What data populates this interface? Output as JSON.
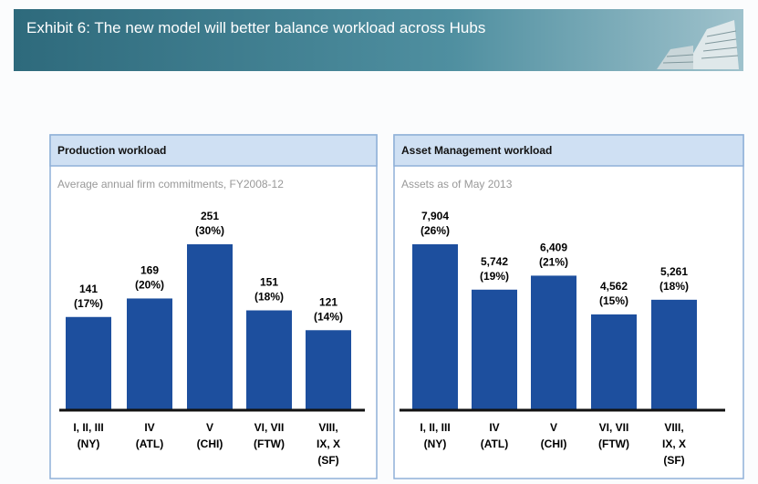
{
  "header": {
    "title": "Exhibit 6: The new model will better balance workload across Hubs"
  },
  "chart_data": [
    {
      "type": "bar",
      "title": "Production workload",
      "subtitle": "Average annual firm commitments, FY2008-12",
      "categories": [
        [
          "I, II, III",
          "(NY)"
        ],
        [
          "IV",
          "(ATL)"
        ],
        [
          "V",
          "(CHI)"
        ],
        [
          "VI, VII",
          "(FTW)"
        ],
        [
          "VIII,",
          "IX, X",
          "(SF)"
        ]
      ],
      "values": [
        141,
        169,
        251,
        151,
        121
      ],
      "percent_labels": [
        "(17%)",
        "(20%)",
        "(30%)",
        "(18%)",
        "(14%)"
      ],
      "color": "#1d4f9e"
    },
    {
      "type": "bar",
      "title": "Asset Management workload",
      "subtitle": "Assets as of May 2013",
      "categories": [
        [
          "I, II, III",
          "(NY)"
        ],
        [
          "IV",
          "(ATL)"
        ],
        [
          "V",
          "(CHI)"
        ],
        [
          "VI, VII",
          "(FTW)"
        ],
        [
          "VIII,",
          "IX, X",
          "(SF)"
        ]
      ],
      "values": [
        7904,
        5742,
        6409,
        4562,
        5261
      ],
      "value_labels": [
        "7,904",
        "5,742",
        "6,409",
        "4,562",
        "5,261"
      ],
      "percent_labels": [
        "(26%)",
        "(19%)",
        "(21%)",
        "(15%)",
        "(18%)"
      ],
      "color": "#1d4f9e"
    }
  ]
}
